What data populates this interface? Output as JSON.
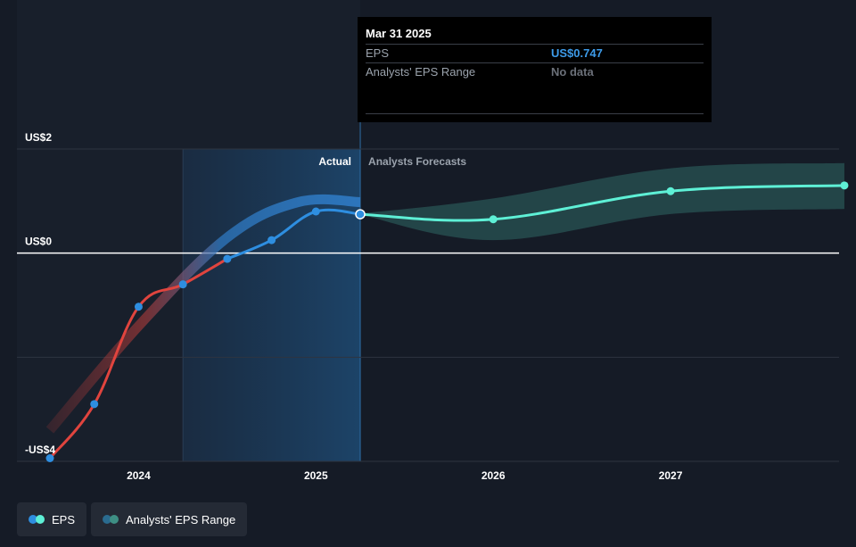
{
  "chart_data": {
    "type": "line",
    "y_tick_labels": [
      "US$2",
      "US$0",
      "-US$4"
    ],
    "y_ticks": [
      2,
      0,
      -4
    ],
    "ylim": [
      -4,
      2
    ],
    "x_tick_labels": [
      "2024",
      "2025",
      "2026",
      "2027"
    ],
    "x_ticks": [
      2024,
      2025,
      2026,
      2027
    ],
    "xlim": [
      2023.5,
      2027.95
    ],
    "actual_label": "Actual",
    "forecast_label": "Analysts Forecasts",
    "actual_end": 2025.25,
    "highlight_start": 2024.25,
    "grid": true,
    "legend_position": "bottom-left",
    "series": [
      {
        "name": "EPS",
        "color": "#2e8ee0",
        "past_color": "#e0443e",
        "x": [
          2023.5,
          2023.75,
          2024.0,
          2024.25,
          2024.5,
          2024.75,
          2025.0,
          2025.25
        ],
        "y": [
          -3.94,
          -2.9,
          -1.03,
          -0.6,
          -0.11,
          0.25,
          0.8,
          0.747
        ]
      },
      {
        "name": "Analysts' EPS Range",
        "color": "#5ef0d6",
        "x": [
          2025.25,
          2026.0,
          2027.0,
          2027.98
        ],
        "y": [
          0.747,
          0.65,
          1.19,
          1.3
        ],
        "upper": [
          0.76,
          1.05,
          1.63,
          1.73
        ],
        "lower": [
          0.74,
          0.25,
          0.75,
          0.85
        ]
      }
    ],
    "analyst_trend": {
      "x": [
        2023.5,
        2024.0,
        2024.5,
        2024.9,
        2025.25
      ],
      "y": [
        -3.4,
        -1.4,
        0.3,
        0.98,
        0.98
      ]
    }
  },
  "tooltip": {
    "date": "Mar 31 2025",
    "rows": [
      {
        "label": "EPS",
        "value": "US$0.747",
        "color": "#3d9be9"
      },
      {
        "label": "Analysts' EPS Range",
        "value": "No data",
        "color": "#6b7079"
      }
    ]
  },
  "legend": [
    {
      "label": "EPS",
      "dot1": "#2e8ee0",
      "dot2": "#5ef0d6"
    },
    {
      "label": "Analysts' EPS Range",
      "dot1": "#2a6b8f",
      "dot2": "#3e8f84"
    }
  ]
}
